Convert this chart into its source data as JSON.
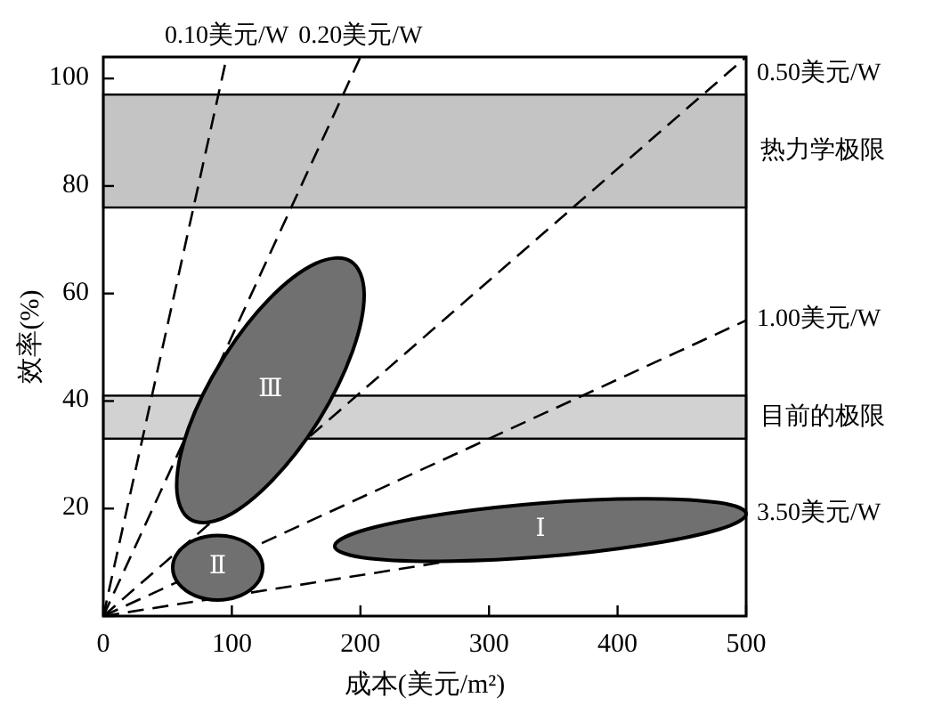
{
  "chart_data": {
    "type": "line",
    "xlabel": "成本(美元/m²)",
    "ylabel": "效率(%)",
    "xlim": [
      0,
      500
    ],
    "ylim": [
      0,
      104
    ],
    "xticks": [
      0,
      100,
      200,
      300,
      400,
      500
    ],
    "yticks": [
      {
        "value": 0,
        "label": null
      },
      20,
      40,
      60,
      80,
      100
    ],
    "grid": false,
    "line_style": "dashed",
    "marker": "none",
    "bands": [
      {
        "axis": "y",
        "from": 76,
        "to": 97,
        "label": "热力学极限",
        "color": "#c4c4c4"
      },
      {
        "axis": "y",
        "from": 33,
        "to": 41,
        "label": "目前的极限",
        "color": "#d2d2d2"
      }
    ],
    "series": [
      {
        "name": "0.10美元/W",
        "color": "#000000",
        "x": [
          0,
          96
        ],
        "values": [
          0,
          104
        ]
      },
      {
        "name": "0.20美元/W",
        "color": "#000000",
        "x": [
          0,
          200
        ],
        "values": [
          0,
          104
        ]
      },
      {
        "name": "0.50美元/W",
        "color": "#000000",
        "x": [
          0,
          500
        ],
        "values": [
          0,
          104
        ]
      },
      {
        "name": "1.00美元/W",
        "color": "#000000",
        "x": [
          0,
          500
        ],
        "values": [
          0,
          55
        ]
      },
      {
        "name": "3.50美元/W",
        "color": "#000000",
        "x": [
          0,
          500
        ],
        "values": [
          0,
          19
        ]
      },
      {
        "name": "Ⅰ",
        "type": "area",
        "color": "#707070",
        "x": [
          500,
          478.6,
          420,
          340,
          260,
          201.4,
          180,
          201.4,
          260,
          340,
          420,
          478.6
        ],
        "values": [
          19,
          21.1,
          21.8,
          21,
          18.8,
          15.9,
          13,
          10.9,
          10.2,
          11,
          13.2,
          16.1
        ]
      },
      {
        "name": "Ⅱ",
        "type": "area",
        "color": "#707070",
        "x": [
          124,
          119.3,
          106.5,
          89,
          71.5,
          58.7,
          54,
          58.7,
          71.5,
          89,
          106.5,
          119.3
        ],
        "values": [
          9,
          12,
          14.2,
          15,
          14.2,
          12,
          9,
          6,
          3.8,
          3,
          3.8,
          6
        ]
      },
      {
        "name": "Ⅲ",
        "type": "area",
        "color": "#707070",
        "x": [
          192.5,
          202.9,
          193.8,
          167.6,
          131.3,
          94.7,
          67.5,
          57.1,
          66.2,
          92.4,
          128.7,
          165.3
        ],
        "values": [
          66,
          60,
          49.2,
          36.4,
          25.2,
          18.4,
          18,
          24,
          34.9,
          47.6,
          58.9,
          65.6
        ]
      }
    ]
  }
}
